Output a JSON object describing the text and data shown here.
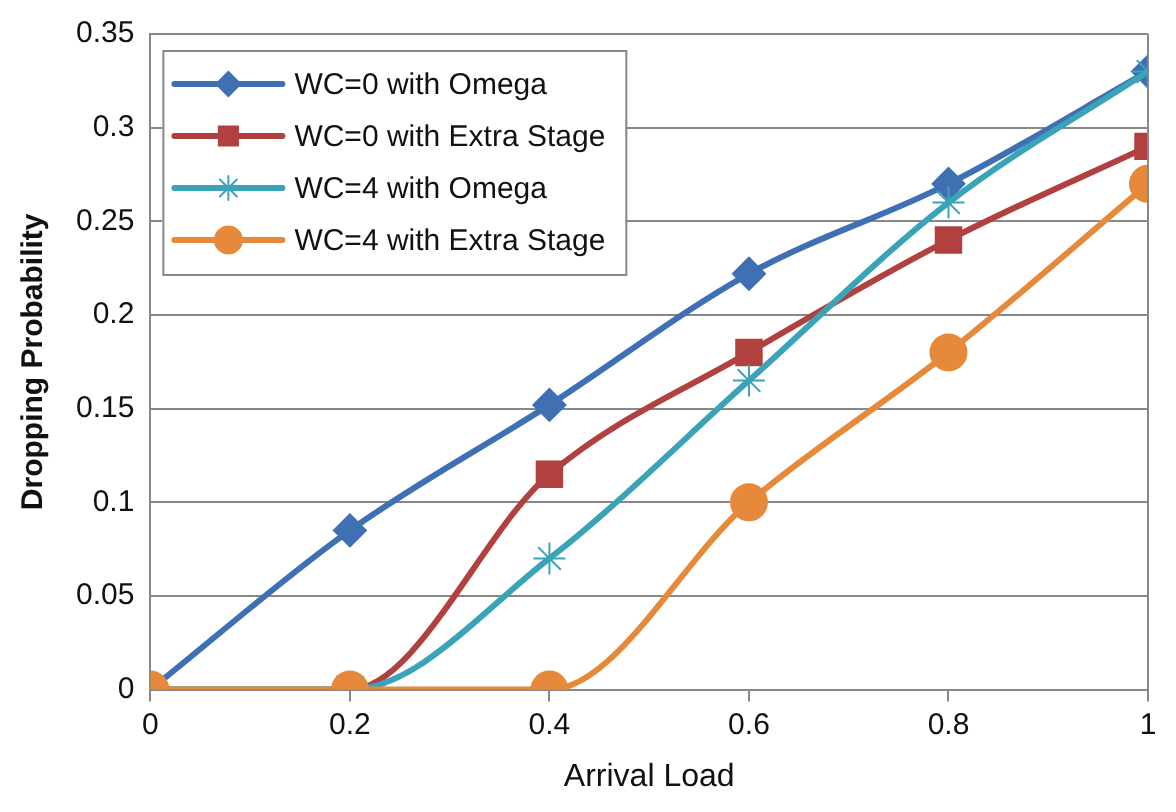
{
  "chart_data": {
    "type": "line",
    "xlabel": "Arrival Load",
    "ylabel": "Dropping Probability",
    "x": [
      0,
      0.2,
      0.4,
      0.6,
      0.8,
      1
    ],
    "series": [
      {
        "name": "WC=0 with Omega",
        "color": "#3f70b3",
        "marker": "diamond",
        "values": [
          0,
          0.085,
          0.152,
          0.222,
          0.27,
          0.33
        ]
      },
      {
        "name": "WC=0 with Extra Stage",
        "color": "#b0413e",
        "marker": "square",
        "values": [
          0,
          0,
          0.115,
          0.18,
          0.24,
          0.29
        ]
      },
      {
        "name": "WC=4 with Omega",
        "color": "#3aa3b8",
        "marker": "cross",
        "values": [
          0,
          0,
          0.07,
          0.165,
          0.26,
          0.33
        ]
      },
      {
        "name": "WC=4 with Extra Stage",
        "color": "#e6893a",
        "marker": "circle",
        "values": [
          0,
          0,
          0,
          0.1,
          0.18,
          0.27
        ]
      }
    ],
    "xlim": [
      0,
      1
    ],
    "xticks": [
      0,
      0.2,
      0.4,
      0.6,
      0.8,
      1
    ],
    "ylim": [
      0,
      0.35
    ],
    "yticks": [
      0,
      0.05,
      0.1,
      0.15,
      0.2,
      0.25,
      0.3,
      0.35
    ],
    "grid": "y",
    "legend": "top left",
    "line_style": "solid"
  }
}
